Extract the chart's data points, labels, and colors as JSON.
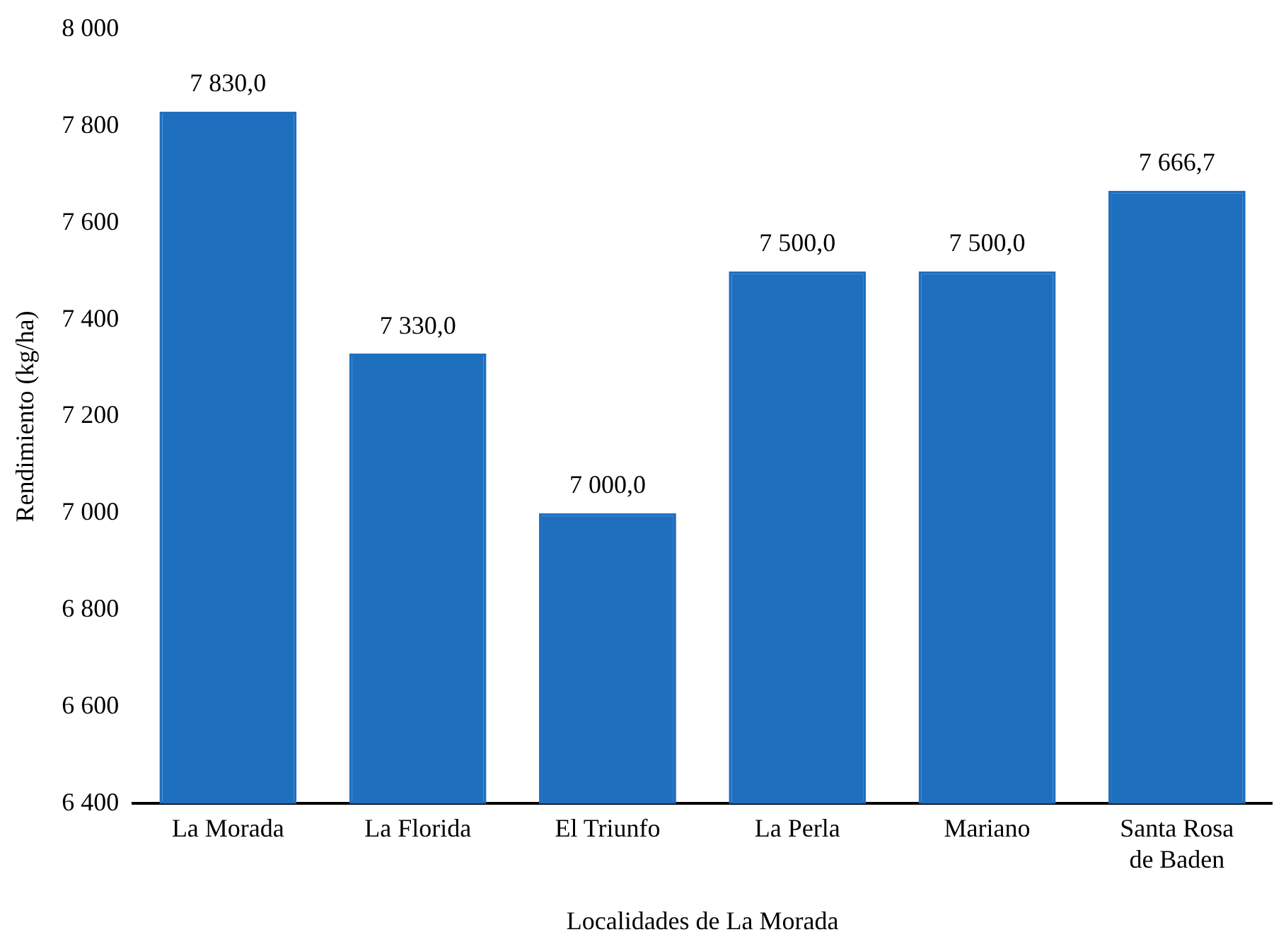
{
  "chart_data": {
    "type": "bar",
    "xlabel": "Localidades de La Morada",
    "ylabel": "Rendimiento (kg/ha)",
    "categories": [
      "La Morada",
      "La Florida",
      "El Triunfo",
      "La Perla",
      "Mariano",
      "Santa Rosa de Baden"
    ],
    "values": [
      7830,
      7330,
      7000,
      7500,
      7500,
      7666.7
    ],
    "value_labels": [
      "7 830,0",
      "7 330,0",
      "7 000,0",
      "7 500,0",
      "7 500,0",
      "7 666,7"
    ],
    "color": "#1f6fbf",
    "ylim": [
      6400,
      8000
    ],
    "yticks": [
      {
        "value": 6400,
        "label": "6 400"
      },
      {
        "value": 6600,
        "label": "6 600"
      },
      {
        "value": 6800,
        "label": "6 800"
      },
      {
        "value": 7000,
        "label": "7 000"
      },
      {
        "value": 7200,
        "label": "7 200"
      },
      {
        "value": 7400,
        "label": "7 400"
      },
      {
        "value": 7600,
        "label": "7 600"
      },
      {
        "value": 7800,
        "label": "7 800"
      },
      {
        "value": 8000,
        "label": "8 000"
      }
    ],
    "grid": false,
    "legend": false
  }
}
